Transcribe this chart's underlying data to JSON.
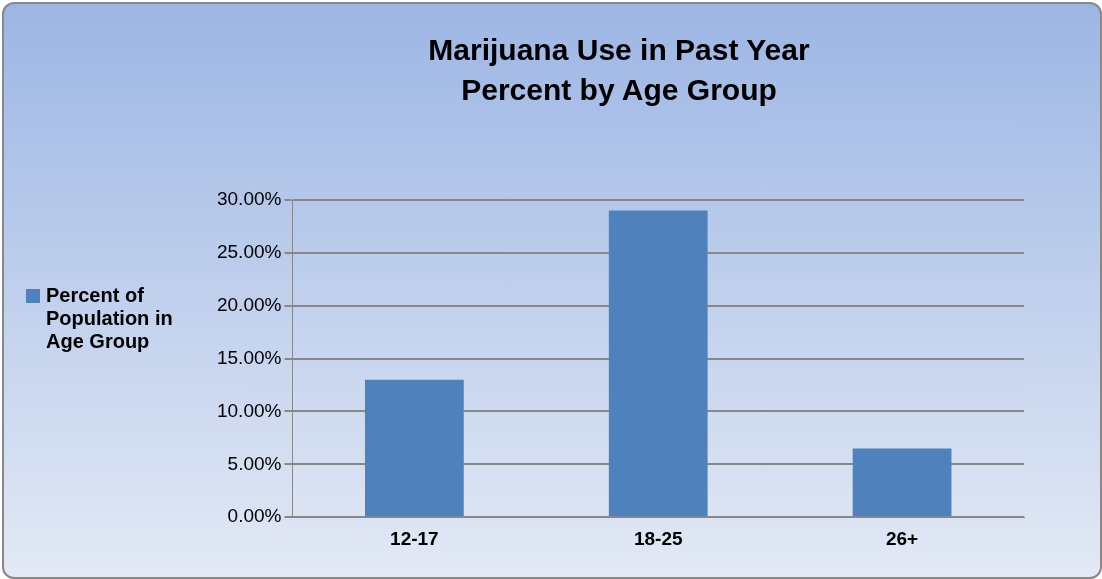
{
  "chart_data": {
    "type": "bar",
    "title": "Marijuana Use in Past Year",
    "subtitle": "Percent by Age Group",
    "categories": [
      "12-17",
      "18-25",
      "26+"
    ],
    "series": [
      {
        "name": "Percent of Population in Age Group",
        "color": "#4f81bd",
        "values": [
          13,
          29,
          6.5
        ]
      }
    ],
    "ylim": [
      0,
      30
    ],
    "yticks": [
      {
        "value": 0,
        "label": "0.00%"
      },
      {
        "value": 5,
        "label": "5.00%"
      },
      {
        "value": 10,
        "label": "10.00%"
      },
      {
        "value": 15,
        "label": "15.00%"
      },
      {
        "value": 20,
        "label": "20.00%"
      },
      {
        "value": 25,
        "label": "25.00%"
      },
      {
        "value": 30,
        "label": "30.00%"
      }
    ],
    "grid": "y",
    "legend": "left"
  }
}
